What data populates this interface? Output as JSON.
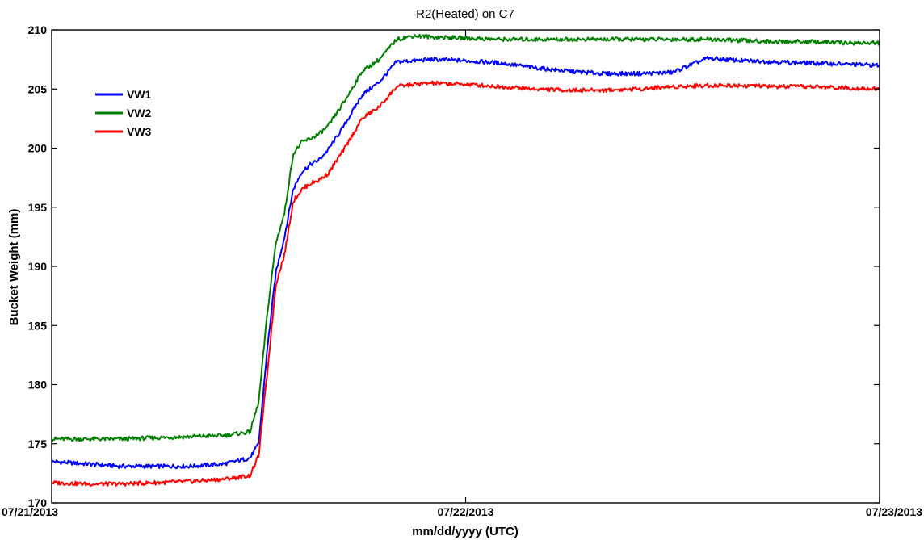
{
  "chart_data": {
    "type": "line",
    "title": "R2(Heated) on C7",
    "xlabel": "mm/dd/yyyy (UTC)",
    "ylabel": "Bucket Weight (mm)",
    "x_ticks": [
      "07/21/2013",
      "07/22/2013",
      "07/23/2013"
    ],
    "x_range": [
      "07/21/2013 00:00",
      "07/23/2013 00:00"
    ],
    "ylim": [
      170,
      210
    ],
    "y_ticks": [
      170,
      175,
      180,
      185,
      190,
      195,
      200,
      205,
      210
    ],
    "grid": false,
    "legend_position": "top-left",
    "x": [
      "07/21/2013 00:00",
      "07/21/2013 02:00",
      "07/21/2013 04:00",
      "07/21/2013 06:00",
      "07/21/2013 08:00",
      "07/21/2013 10:00",
      "07/21/2013 11:30",
      "07/21/2013 12:00",
      "07/21/2013 12:30",
      "07/21/2013 13:00",
      "07/21/2013 13:30",
      "07/21/2013 14:00",
      "07/21/2013 14:30",
      "07/21/2013 15:00",
      "07/21/2013 15:30",
      "07/21/2013 16:00",
      "07/21/2013 17:00",
      "07/21/2013 18:00",
      "07/21/2013 19:00",
      "07/21/2013 20:00",
      "07/21/2013 21:00",
      "07/21/2013 22:00",
      "07/22/2013 00:00",
      "07/22/2013 02:00",
      "07/22/2013 04:00",
      "07/22/2013 06:00",
      "07/22/2013 08:00",
      "07/22/2013 10:00",
      "07/22/2013 12:00",
      "07/22/2013 14:00",
      "07/22/2013 16:00",
      "07/22/2013 18:00",
      "07/22/2013 20:00",
      "07/22/2013 22:00",
      "07/23/2013 00:00"
    ],
    "series": [
      {
        "name": "VW1",
        "color": "#0000ff",
        "values": [
          173.5,
          173.3,
          173.1,
          173.1,
          173.1,
          173.3,
          173.8,
          175.0,
          183.0,
          189.5,
          192.5,
          196.5,
          198.0,
          198.6,
          199.0,
          199.8,
          202.0,
          204.5,
          205.6,
          207.3,
          207.4,
          207.5,
          207.4,
          207.2,
          206.8,
          206.5,
          206.3,
          206.3,
          206.4,
          207.6,
          207.4,
          207.3,
          207.2,
          207.1,
          207.0
        ]
      },
      {
        "name": "VW2",
        "color": "#008000",
        "values": [
          175.4,
          175.4,
          175.4,
          175.5,
          175.6,
          175.7,
          176.0,
          178.5,
          186.0,
          192.0,
          194.5,
          199.5,
          200.5,
          200.8,
          201.2,
          201.8,
          204.0,
          206.5,
          207.5,
          209.2,
          209.5,
          209.4,
          209.3,
          209.2,
          209.2,
          209.2,
          209.2,
          209.2,
          209.2,
          209.2,
          209.1,
          209.0,
          209.0,
          208.9,
          208.9
        ]
      },
      {
        "name": "VW3",
        "color": "#ff0000",
        "values": [
          171.7,
          171.6,
          171.6,
          171.7,
          171.8,
          172.0,
          172.3,
          174.0,
          181.0,
          188.5,
          191.0,
          195.5,
          196.5,
          197.0,
          197.3,
          197.8,
          200.0,
          202.5,
          203.5,
          205.2,
          205.4,
          205.5,
          205.4,
          205.2,
          205.0,
          204.9,
          204.9,
          205.0,
          205.2,
          205.3,
          205.3,
          205.2,
          205.2,
          205.1,
          205.0
        ]
      }
    ]
  }
}
